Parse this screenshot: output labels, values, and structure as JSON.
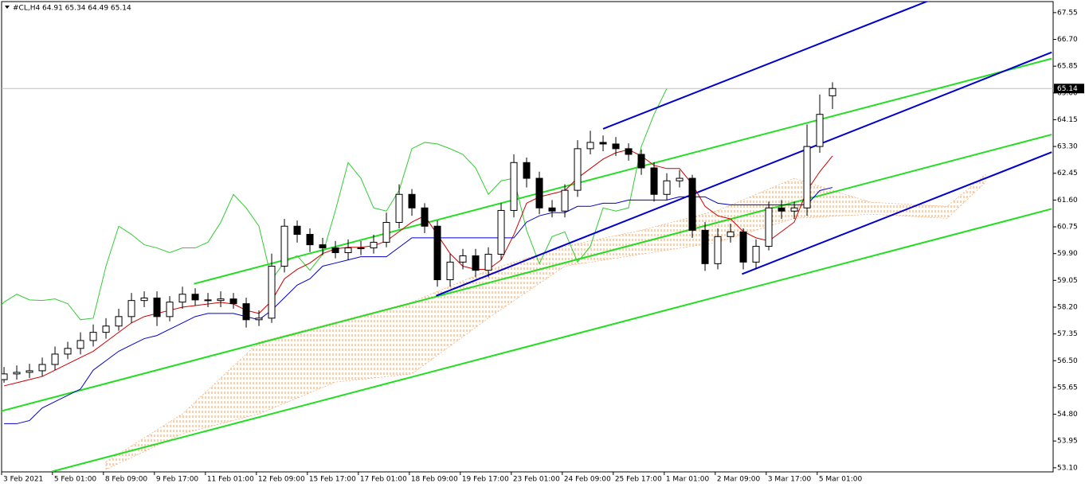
{
  "chart_data": {
    "type": "candlestick",
    "title": "#CL,H4 64.91 65.34 64.49 65.14",
    "xlim": [
      -0.19,
      82.31
    ],
    "ylim": [
      52.97,
      67.9
    ],
    "yticks": [
      67.55,
      {
        "value": 66.7,
        "label": "66.70"
      },
      65.85,
      {
        "value": 65,
        "label": "65.00"
      },
      64.15,
      {
        "value": 63.3,
        "label": "63.30"
      },
      62.45,
      {
        "value": 61.6,
        "label": "61.60"
      },
      60.75,
      {
        "value": 59.9,
        "label": "59.90"
      },
      59.05,
      {
        "value": 58.2,
        "label": "58.20"
      },
      57.35,
      {
        "value": 56.5,
        "label": "56.50"
      },
      55.65,
      {
        "value": 54.8,
        "label": "54.80"
      },
      53.95,
      {
        "value": 53.1,
        "label": "53.10"
      }
    ],
    "xticks": [
      {
        "value": -0.2,
        "label": "3 Feb 2021"
      },
      {
        "value": 3.8,
        "label": "5 Feb 01:00"
      },
      {
        "value": 7.8,
        "label": "8 Feb 09:00"
      },
      {
        "value": 11.8,
        "label": "9 Feb 17:00"
      },
      {
        "value": 15.8,
        "label": "11 Feb 01:00"
      },
      {
        "value": 19.8,
        "label": "12 Feb 09:00"
      },
      {
        "value": 23.8,
        "label": "15 Feb 17:00"
      },
      {
        "value": 27.8,
        "label": "17 Feb 01:00"
      },
      {
        "value": 31.8,
        "label": "18 Feb 09:00"
      },
      {
        "value": 35.8,
        "label": "19 Feb 17:00"
      },
      {
        "value": 39.8,
        "label": "23 Feb 01:00"
      },
      {
        "value": 43.8,
        "label": "24 Feb 09:00"
      },
      {
        "value": 47.8,
        "label": "25 Feb 17:00"
      },
      {
        "value": 51.8,
        "label": "1 Mar 01:00"
      },
      {
        "value": 55.8,
        "label": "2 Mar 09:00"
      },
      {
        "value": 59.8,
        "label": "3 Mar 17:00"
      },
      {
        "value": 63.8,
        "label": "5 Mar 01:00"
      }
    ],
    "current_price": {
      "value": 65.14,
      "label": "65.14"
    },
    "open": [
      55.9,
      56.08,
      56.13,
      56.18,
      56.38,
      56.71,
      56.89,
      57.14,
      57.4,
      57.6,
      57.9,
      58.41,
      58.49,
      57.9,
      58.36,
      58.61,
      58.43,
      58.41,
      58.46,
      58.31,
      57.8,
      57.85,
      59.5,
      60.77,
      60.51,
      60.18,
      60.08,
      59.93,
      60.08,
      60.08,
      60.26,
      60.89,
      61.78,
      61.35,
      60.77,
      59.07,
      59.63,
      59.83,
      59.37,
      59.88,
      61.27,
      62.79,
      62.29,
      61.35,
      61.25,
      61.91,
      63.23,
      63.43,
      63.38,
      63.23,
      63.05,
      62.62,
      61.78,
      62.21,
      62.29,
      60.64,
      59.58,
      60.44,
      60.59,
      59.63,
      60.13,
      61.35,
      61.25,
      61.35,
      63.3,
      64.91
    ],
    "high": [
      56.3,
      56.35,
      56.4,
      56.6,
      56.95,
      57.1,
      57.4,
      57.65,
      57.85,
      58.15,
      58.65,
      58.7,
      58.7,
      58.55,
      58.85,
      58.8,
      58.65,
      58.7,
      58.65,
      58.5,
      58.1,
      59.9,
      61.0,
      60.95,
      60.7,
      60.4,
      60.3,
      60.35,
      60.3,
      60.5,
      61.2,
      62.1,
      61.95,
      61.5,
      60.95,
      59.9,
      60.05,
      60.05,
      60.1,
      61.5,
      63.05,
      62.95,
      62.5,
      61.6,
      62.1,
      63.5,
      63.8,
      63.65,
      63.6,
      63.4,
      63.2,
      62.8,
      62.45,
      62.55,
      62.4,
      60.9,
      60.7,
      60.85,
      60.7,
      60.35,
      61.55,
      61.6,
      61.55,
      64.0,
      64.95,
      65.34
    ],
    "low": [
      55.8,
      55.9,
      55.95,
      56.0,
      56.2,
      56.55,
      56.7,
      56.95,
      57.2,
      57.45,
      57.7,
      58.2,
      57.6,
      57.75,
      58.15,
      58.25,
      58.2,
      58.2,
      58.15,
      57.55,
      57.6,
      57.7,
      59.3,
      60.25,
      59.95,
      59.85,
      59.75,
      59.7,
      59.85,
      59.9,
      60.1,
      60.7,
      61.1,
      60.55,
      58.85,
      58.85,
      59.4,
      59.15,
      59.15,
      59.7,
      61.05,
      62.0,
      61.15,
      61.05,
      61.05,
      61.7,
      63.05,
      63.15,
      63.0,
      62.85,
      62.4,
      61.55,
      61.6,
      62.0,
      60.4,
      59.35,
      59.4,
      60.25,
      59.4,
      59.4,
      60.0,
      61.0,
      61.0,
      61.1,
      63.1,
      64.49
    ],
    "close": [
      56.08,
      56.13,
      56.18,
      56.38,
      56.71,
      56.89,
      57.14,
      57.4,
      57.6,
      57.9,
      58.41,
      58.49,
      57.9,
      58.36,
      58.61,
      58.43,
      58.41,
      58.46,
      58.31,
      57.8,
      57.85,
      59.5,
      60.77,
      60.51,
      60.18,
      60.08,
      59.93,
      60.08,
      60.08,
      60.26,
      60.89,
      61.78,
      61.35,
      60.77,
      59.07,
      59.63,
      59.83,
      59.37,
      59.88,
      61.27,
      62.79,
      62.29,
      61.35,
      61.25,
      61.91,
      63.23,
      63.43,
      63.38,
      63.23,
      63.05,
      62.62,
      61.78,
      62.21,
      62.29,
      60.64,
      59.58,
      60.44,
      60.59,
      59.63,
      60.13,
      61.35,
      61.25,
      61.35,
      63.3,
      64.32,
      65.14
    ],
    "tenkan": {
      "color": "#cc0000",
      "values": [
        55.7,
        55.8,
        55.9,
        56.0,
        56.2,
        56.4,
        56.6,
        56.8,
        57.1,
        57.4,
        57.7,
        57.9,
        58.0,
        58.1,
        58.2,
        58.25,
        58.3,
        58.35,
        58.3,
        58.1,
        58.0,
        58.4,
        59.1,
        59.4,
        59.6,
        59.9,
        60.05,
        60.1,
        60.1,
        60.15,
        60.3,
        60.6,
        60.9,
        61.1,
        60.5,
        59.9,
        59.5,
        59.4,
        59.4,
        59.7,
        60.5,
        61.5,
        61.7,
        61.8,
        61.9,
        62.3,
        62.6,
        62.9,
        63.1,
        63.2,
        63.0,
        62.7,
        62.6,
        62.6,
        62.1,
        61.4,
        61.1,
        61.0,
        60.6,
        60.4,
        60.3,
        60.6,
        60.9,
        61.9,
        62.5,
        63.0
      ]
    },
    "kijun": {
      "color": "#0000cc",
      "values": [
        54.5,
        54.5,
        54.6,
        55.0,
        55.2,
        55.4,
        55.6,
        56.2,
        56.5,
        56.8,
        57.0,
        57.2,
        57.3,
        57.5,
        57.7,
        57.9,
        58.0,
        58.0,
        58.0,
        57.9,
        57.8,
        58.1,
        58.5,
        58.9,
        59.1,
        59.5,
        59.6,
        59.7,
        59.8,
        59.8,
        59.8,
        60.1,
        60.4,
        60.4,
        60.4,
        60.4,
        60.4,
        60.4,
        60.4,
        60.4,
        60.4,
        60.9,
        61.1,
        61.2,
        61.2,
        61.4,
        61.4,
        61.5,
        61.5,
        61.6,
        61.6,
        61.6,
        61.6,
        61.7,
        61.7,
        61.7,
        61.5,
        61.45,
        61.45,
        61.45,
        61.45,
        61.45,
        61.45,
        61.45,
        61.9,
        62.0
      ]
    },
    "chikou_color": "#33cc33",
    "cloud": {
      "color": "#f0a060",
      "x": [
        8,
        14,
        20,
        26,
        32,
        38,
        44,
        50,
        56,
        62,
        68,
        74,
        77
      ],
      "upper": [
        53.29,
        54.81,
        57.09,
        57.72,
        58.36,
        59.37,
        60.13,
        60.64,
        61.27,
        62.29,
        61.53,
        61.4,
        62.41
      ],
      "lower": [
        53.05,
        54.18,
        54.81,
        55.82,
        56.08,
        57.85,
        59.5,
        59.88,
        60.26,
        61.02,
        61.15,
        61.02,
        62.16
      ]
    },
    "channels": [
      {
        "color": "#22dd22",
        "points": [
          [
            14.9,
            58.94
          ],
          [
            82.2,
            66.09
          ]
        ]
      },
      {
        "color": "#22dd22",
        "points": [
          [
            -0.31,
            54.89
          ],
          [
            82.2,
            63.68
          ]
        ]
      },
      {
        "color": "#22dd22",
        "points": [
          [
            3.75,
            52.98
          ],
          [
            82.2,
            61.32
          ]
        ]
      },
      {
        "color": "#0000cc",
        "points": [
          [
            47,
            63.86
          ],
          [
            72.5,
            67.92
          ]
        ]
      },
      {
        "color": "#0000cc",
        "points": [
          [
            33.9,
            58.56
          ],
          [
            82.2,
            66.29
          ]
        ]
      },
      {
        "color": "#0000cc",
        "points": [
          [
            57.9,
            59.25
          ],
          [
            82.2,
            63.12
          ]
        ]
      }
    ]
  }
}
